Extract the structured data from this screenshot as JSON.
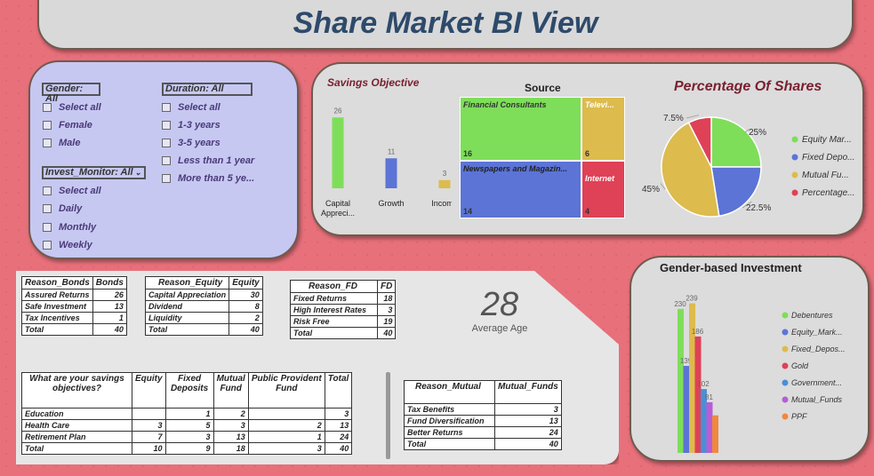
{
  "title": "Share Market BI View",
  "filters": {
    "gender": {
      "header": "Gender: All",
      "options": [
        "Select all",
        "Female",
        "Male"
      ]
    },
    "duration": {
      "header": "Duration: All",
      "options": [
        "Select all",
        "1-3 years",
        "3-5 years",
        "Less than 1 year",
        "More than 5 ye..."
      ]
    },
    "invest_monitor": {
      "header": "Invest_Monitor: All",
      "options": [
        "Select all",
        "Daily",
        "Monthly",
        "Weekly"
      ]
    }
  },
  "savings_objective": {
    "title": "Savings Objective"
  },
  "source": {
    "title": "Source",
    "tiles": [
      {
        "label": "Financial Consultants",
        "value": "16",
        "color": "#7ede5a"
      },
      {
        "label": "Televi...",
        "value": "6",
        "color": "#ddbb4d"
      },
      {
        "label": "Newspapers and Magazin...",
        "value": "14",
        "color": "#5b74d6"
      },
      {
        "label": "Internet",
        "value": "4",
        "color": "#df4156"
      }
    ]
  },
  "percentage_shares": {
    "title": "Percentage Of Shares"
  },
  "chart_data": [
    {
      "type": "bar",
      "title": "Savings Objective",
      "categories": [
        "Capital Appreci...",
        "Growth",
        "Income"
      ],
      "values": [
        26,
        11,
        3
      ],
      "colors": [
        "#7ede5a",
        "#5b74d6",
        "#ddbb4d"
      ],
      "ylim": [
        0,
        30
      ]
    },
    {
      "type": "pie",
      "title": "Percentage Of Shares",
      "labels": [
        "Equity Mar...",
        "Fixed Depo...",
        "Mutual Fu...",
        "Percentage..."
      ],
      "values": [
        25,
        22.5,
        45,
        7.5
      ],
      "value_labels": [
        "25%",
        "22.5%",
        "45%",
        "7.5%"
      ],
      "colors": [
        "#7ede5a",
        "#5b74d6",
        "#ddbb4d",
        "#df4156"
      ],
      "legend": "right"
    },
    {
      "type": "bar",
      "title": "Gender-based Investment",
      "categories": [
        "Debentures",
        "Equity_Mark...",
        "Fixed_Depos...",
        "Gold",
        "Government...",
        "Mutual_Funds",
        "PPF"
      ],
      "values": [
        230,
        139,
        239,
        186,
        102,
        81,
        60
      ],
      "value_labels": [
        "230",
        "139",
        "239",
        "186",
        "102",
        "81",
        ""
      ],
      "colors": [
        "#7ede5a",
        "#5b74d6",
        "#ddbb4d",
        "#df4156",
        "#4a8fd6",
        "#b65ed6",
        "#f0883f"
      ],
      "legend": "right"
    }
  ],
  "gender_investment": {
    "title": "Gender-based Investment"
  },
  "kpi": {
    "value": "28",
    "label": "Average Age"
  },
  "bonds_table": {
    "headers": [
      "Reason_Bonds",
      "Bonds"
    ],
    "rows": [
      [
        "Assured Returns",
        "26"
      ],
      [
        "Safe Investment",
        "13"
      ],
      [
        "Tax Incentives",
        "1"
      ],
      [
        "Total",
        "40"
      ]
    ]
  },
  "equity_table": {
    "headers": [
      "Reason_Equity",
      "Equity"
    ],
    "rows": [
      [
        "Capital Appreciation",
        "30"
      ],
      [
        "Dividend",
        "8"
      ],
      [
        "Liquidity",
        "2"
      ],
      [
        "Total",
        "40"
      ]
    ]
  },
  "fd_table": {
    "headers": [
      "Reason_FD",
      "FD"
    ],
    "rows": [
      [
        "Fixed Returns",
        "18"
      ],
      [
        "High Interest Rates",
        "3"
      ],
      [
        "Risk Free",
        "19"
      ],
      [
        "Total",
        "40"
      ]
    ]
  },
  "objectives_table": {
    "headers": [
      "What are your savings objectives?",
      "Equity",
      "Fixed Deposits",
      "Mutual Fund",
      "Public Provident Fund",
      "Total"
    ],
    "rows": [
      [
        "Education",
        "",
        "1",
        "2",
        "",
        "3"
      ],
      [
        "Health Care",
        "3",
        "5",
        "3",
        "2",
        "13"
      ],
      [
        "Retirement Plan",
        "7",
        "3",
        "13",
        "1",
        "24"
      ],
      [
        "Total",
        "10",
        "9",
        "18",
        "3",
        "40"
      ]
    ]
  },
  "mutual_table": {
    "headers": [
      "Reason_Mutual",
      "Mutual_Funds"
    ],
    "rows": [
      [
        "Tax Benefits",
        "3"
      ],
      [
        "Fund Diversification",
        "13"
      ],
      [
        "Better Returns",
        "24"
      ],
      [
        "Total",
        "40"
      ]
    ]
  }
}
